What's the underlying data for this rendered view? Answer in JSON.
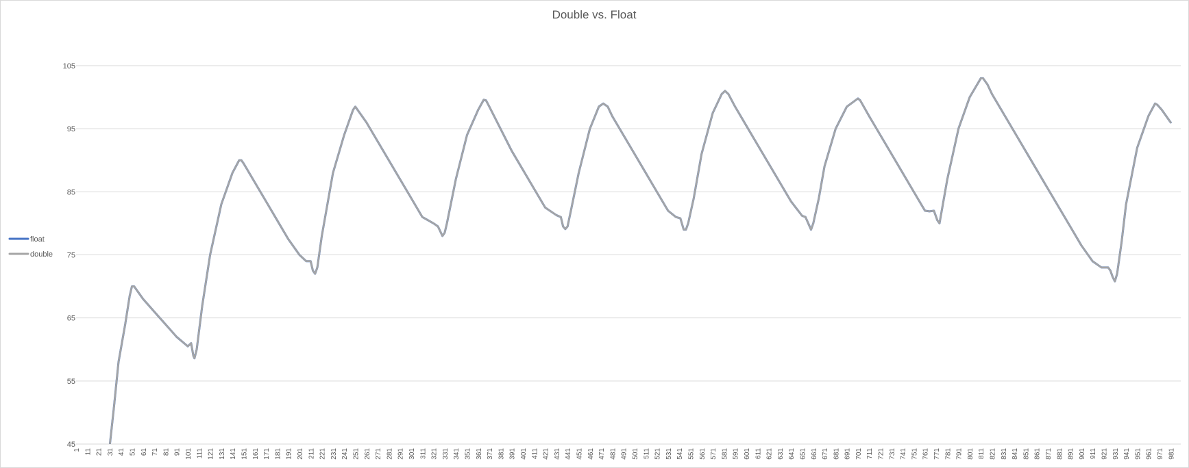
{
  "chart_data": {
    "type": "line",
    "title": "Double vs. Float",
    "xlabel": "",
    "ylabel": "",
    "ylim": [
      45,
      105
    ],
    "xlim": [
      1,
      990
    ],
    "yticks": [
      45,
      55,
      65,
      75,
      85,
      95,
      105
    ],
    "xtick_start": 1,
    "xtick_step": 10,
    "xtick_end": 981,
    "grid": true,
    "legend_position": "left",
    "series": [
      {
        "name": "float",
        "color": "#4472c4",
        "keypoints": [
          [
            29,
            42
          ],
          [
            31,
            44.5
          ],
          [
            35,
            51
          ],
          [
            39,
            58
          ],
          [
            45,
            64
          ],
          [
            49,
            68.5
          ],
          [
            51,
            70
          ],
          [
            53,
            70
          ],
          [
            61,
            68
          ],
          [
            71,
            66
          ],
          [
            81,
            64
          ],
          [
            91,
            62
          ],
          [
            101,
            60.5
          ],
          [
            104,
            61
          ],
          [
            106,
            59
          ],
          [
            107,
            58.6
          ],
          [
            109,
            60
          ],
          [
            114,
            67
          ],
          [
            121,
            75
          ],
          [
            131,
            83
          ],
          [
            141,
            88
          ],
          [
            147,
            90
          ],
          [
            149,
            90
          ],
          [
            151,
            89.5
          ],
          [
            161,
            86.5
          ],
          [
            171,
            83.5
          ],
          [
            181,
            80.5
          ],
          [
            191,
            77.5
          ],
          [
            201,
            75
          ],
          [
            207,
            74
          ],
          [
            211,
            74
          ],
          [
            213,
            72.5
          ],
          [
            215,
            72
          ],
          [
            217,
            73
          ],
          [
            221,
            78
          ],
          [
            231,
            88
          ],
          [
            241,
            94
          ],
          [
            249,
            98
          ],
          [
            251,
            98.5
          ],
          [
            253,
            98
          ],
          [
            261,
            96
          ],
          [
            271,
            93
          ],
          [
            281,
            90
          ],
          [
            291,
            87
          ],
          [
            301,
            84
          ],
          [
            311,
            81
          ],
          [
            321,
            80
          ],
          [
            325,
            79.5
          ],
          [
            329,
            78
          ],
          [
            331,
            78.5
          ],
          [
            333,
            80
          ],
          [
            341,
            87
          ],
          [
            351,
            94
          ],
          [
            361,
            98
          ],
          [
            366,
            99.6
          ],
          [
            368,
            99.5
          ],
          [
            371,
            98.5
          ],
          [
            381,
            95
          ],
          [
            391,
            91.5
          ],
          [
            401,
            88.5
          ],
          [
            411,
            85.5
          ],
          [
            421,
            82.5
          ],
          [
            431,
            81.3
          ],
          [
            435,
            81
          ],
          [
            437,
            79.5
          ],
          [
            439,
            79.1
          ],
          [
            441,
            79.5
          ],
          [
            444,
            82
          ],
          [
            451,
            88
          ],
          [
            461,
            95
          ],
          [
            469,
            98.5
          ],
          [
            473,
            99
          ],
          [
            477,
            98.5
          ],
          [
            481,
            97
          ],
          [
            491,
            94
          ],
          [
            501,
            91
          ],
          [
            511,
            88
          ],
          [
            521,
            85
          ],
          [
            531,
            82
          ],
          [
            538,
            81
          ],
          [
            542,
            80.8
          ],
          [
            545,
            79
          ],
          [
            547,
            79
          ],
          [
            549,
            80
          ],
          [
            554,
            84
          ],
          [
            561,
            91
          ],
          [
            571,
            97.5
          ],
          [
            579,
            100.5
          ],
          [
            582,
            101
          ],
          [
            585,
            100.5
          ],
          [
            591,
            98.5
          ],
          [
            601,
            95.5
          ],
          [
            611,
            92.5
          ],
          [
            621,
            89.5
          ],
          [
            631,
            86.5
          ],
          [
            641,
            83.5
          ],
          [
            651,
            81.2
          ],
          [
            654,
            81
          ],
          [
            657,
            79.8
          ],
          [
            659,
            79
          ],
          [
            661,
            80
          ],
          [
            666,
            84
          ],
          [
            671,
            89
          ],
          [
            681,
            95
          ],
          [
            691,
            98.5
          ],
          [
            701,
            99.8
          ],
          [
            703,
            99.5
          ],
          [
            711,
            97
          ],
          [
            721,
            94
          ],
          [
            731,
            91
          ],
          [
            741,
            88
          ],
          [
            751,
            85
          ],
          [
            761,
            82
          ],
          [
            765,
            81.9
          ],
          [
            769,
            82
          ],
          [
            772,
            80.5
          ],
          [
            774,
            80
          ],
          [
            777,
            83
          ],
          [
            781,
            87
          ],
          [
            791,
            95
          ],
          [
            801,
            100
          ],
          [
            811,
            103
          ],
          [
            813,
            103
          ],
          [
            817,
            102
          ],
          [
            821,
            100.5
          ],
          [
            831,
            97.5
          ],
          [
            841,
            94.5
          ],
          [
            851,
            91.5
          ],
          [
            861,
            88.5
          ],
          [
            871,
            85.5
          ],
          [
            881,
            82.5
          ],
          [
            891,
            79.5
          ],
          [
            901,
            76.5
          ],
          [
            911,
            74
          ],
          [
            919,
            73
          ],
          [
            925,
            73
          ],
          [
            927,
            72.5
          ],
          [
            929,
            71.5
          ],
          [
            931,
            70.8
          ],
          [
            933,
            72
          ],
          [
            937,
            77
          ],
          [
            941,
            83
          ],
          [
            951,
            92
          ],
          [
            961,
            97
          ],
          [
            967,
            99
          ],
          [
            969,
            98.8
          ],
          [
            973,
            98
          ],
          [
            977,
            97
          ],
          [
            981,
            96
          ]
        ]
      },
      {
        "name": "double",
        "color": "#a5a5a5",
        "keypoints": [
          [
            29,
            42
          ],
          [
            31,
            44.5
          ],
          [
            35,
            51
          ],
          [
            39,
            58
          ],
          [
            45,
            64
          ],
          [
            49,
            68.5
          ],
          [
            51,
            70
          ],
          [
            53,
            70
          ],
          [
            61,
            68
          ],
          [
            71,
            66
          ],
          [
            81,
            64
          ],
          [
            91,
            62
          ],
          [
            101,
            60.5
          ],
          [
            104,
            61
          ],
          [
            106,
            59
          ],
          [
            107,
            58.6
          ],
          [
            109,
            60
          ],
          [
            114,
            67
          ],
          [
            121,
            75
          ],
          [
            131,
            83
          ],
          [
            141,
            88
          ],
          [
            147,
            90
          ],
          [
            149,
            90
          ],
          [
            151,
            89.5
          ],
          [
            161,
            86.5
          ],
          [
            171,
            83.5
          ],
          [
            181,
            80.5
          ],
          [
            191,
            77.5
          ],
          [
            201,
            75
          ],
          [
            207,
            74
          ],
          [
            211,
            74
          ],
          [
            213,
            72.5
          ],
          [
            215,
            72
          ],
          [
            217,
            73
          ],
          [
            221,
            78
          ],
          [
            231,
            88
          ],
          [
            241,
            94
          ],
          [
            249,
            98
          ],
          [
            251,
            98.5
          ],
          [
            253,
            98
          ],
          [
            261,
            96
          ],
          [
            271,
            93
          ],
          [
            281,
            90
          ],
          [
            291,
            87
          ],
          [
            301,
            84
          ],
          [
            311,
            81
          ],
          [
            321,
            80
          ],
          [
            325,
            79.5
          ],
          [
            329,
            78
          ],
          [
            331,
            78.5
          ],
          [
            333,
            80
          ],
          [
            341,
            87
          ],
          [
            351,
            94
          ],
          [
            361,
            98
          ],
          [
            366,
            99.6
          ],
          [
            368,
            99.5
          ],
          [
            371,
            98.5
          ],
          [
            381,
            95
          ],
          [
            391,
            91.5
          ],
          [
            401,
            88.5
          ],
          [
            411,
            85.5
          ],
          [
            421,
            82.5
          ],
          [
            431,
            81.3
          ],
          [
            435,
            81
          ],
          [
            437,
            79.5
          ],
          [
            439,
            79.1
          ],
          [
            441,
            79.5
          ],
          [
            444,
            82
          ],
          [
            451,
            88
          ],
          [
            461,
            95
          ],
          [
            469,
            98.5
          ],
          [
            473,
            99
          ],
          [
            477,
            98.5
          ],
          [
            481,
            97
          ],
          [
            491,
            94
          ],
          [
            501,
            91
          ],
          [
            511,
            88
          ],
          [
            521,
            85
          ],
          [
            531,
            82
          ],
          [
            538,
            81
          ],
          [
            542,
            80.8
          ],
          [
            545,
            79
          ],
          [
            547,
            79
          ],
          [
            549,
            80
          ],
          [
            554,
            84
          ],
          [
            561,
            91
          ],
          [
            571,
            97.5
          ],
          [
            579,
            100.5
          ],
          [
            582,
            101
          ],
          [
            585,
            100.5
          ],
          [
            591,
            98.5
          ],
          [
            601,
            95.5
          ],
          [
            611,
            92.5
          ],
          [
            621,
            89.5
          ],
          [
            631,
            86.5
          ],
          [
            641,
            83.5
          ],
          [
            651,
            81.2
          ],
          [
            654,
            81
          ],
          [
            657,
            79.8
          ],
          [
            659,
            79
          ],
          [
            661,
            80
          ],
          [
            666,
            84
          ],
          [
            671,
            89
          ],
          [
            681,
            95
          ],
          [
            691,
            98.5
          ],
          [
            701,
            99.8
          ],
          [
            703,
            99.5
          ],
          [
            711,
            97
          ],
          [
            721,
            94
          ],
          [
            731,
            91
          ],
          [
            741,
            88
          ],
          [
            751,
            85
          ],
          [
            761,
            82
          ],
          [
            765,
            81.9
          ],
          [
            769,
            82
          ],
          [
            772,
            80.5
          ],
          [
            774,
            80
          ],
          [
            777,
            83
          ],
          [
            781,
            87
          ],
          [
            791,
            95
          ],
          [
            801,
            100
          ],
          [
            811,
            103
          ],
          [
            813,
            103
          ],
          [
            817,
            102
          ],
          [
            821,
            100.5
          ],
          [
            831,
            97.5
          ],
          [
            841,
            94.5
          ],
          [
            851,
            91.5
          ],
          [
            861,
            88.5
          ],
          [
            871,
            85.5
          ],
          [
            881,
            82.5
          ],
          [
            891,
            79.5
          ],
          [
            901,
            76.5
          ],
          [
            911,
            74
          ],
          [
            919,
            73
          ],
          [
            925,
            73
          ],
          [
            927,
            72.5
          ],
          [
            929,
            71.5
          ],
          [
            931,
            70.8
          ],
          [
            933,
            72
          ],
          [
            937,
            77
          ],
          [
            941,
            83
          ],
          [
            951,
            92
          ],
          [
            961,
            97
          ],
          [
            967,
            99
          ],
          [
            969,
            98.8
          ],
          [
            973,
            98
          ],
          [
            977,
            97
          ],
          [
            981,
            96
          ]
        ]
      }
    ]
  }
}
